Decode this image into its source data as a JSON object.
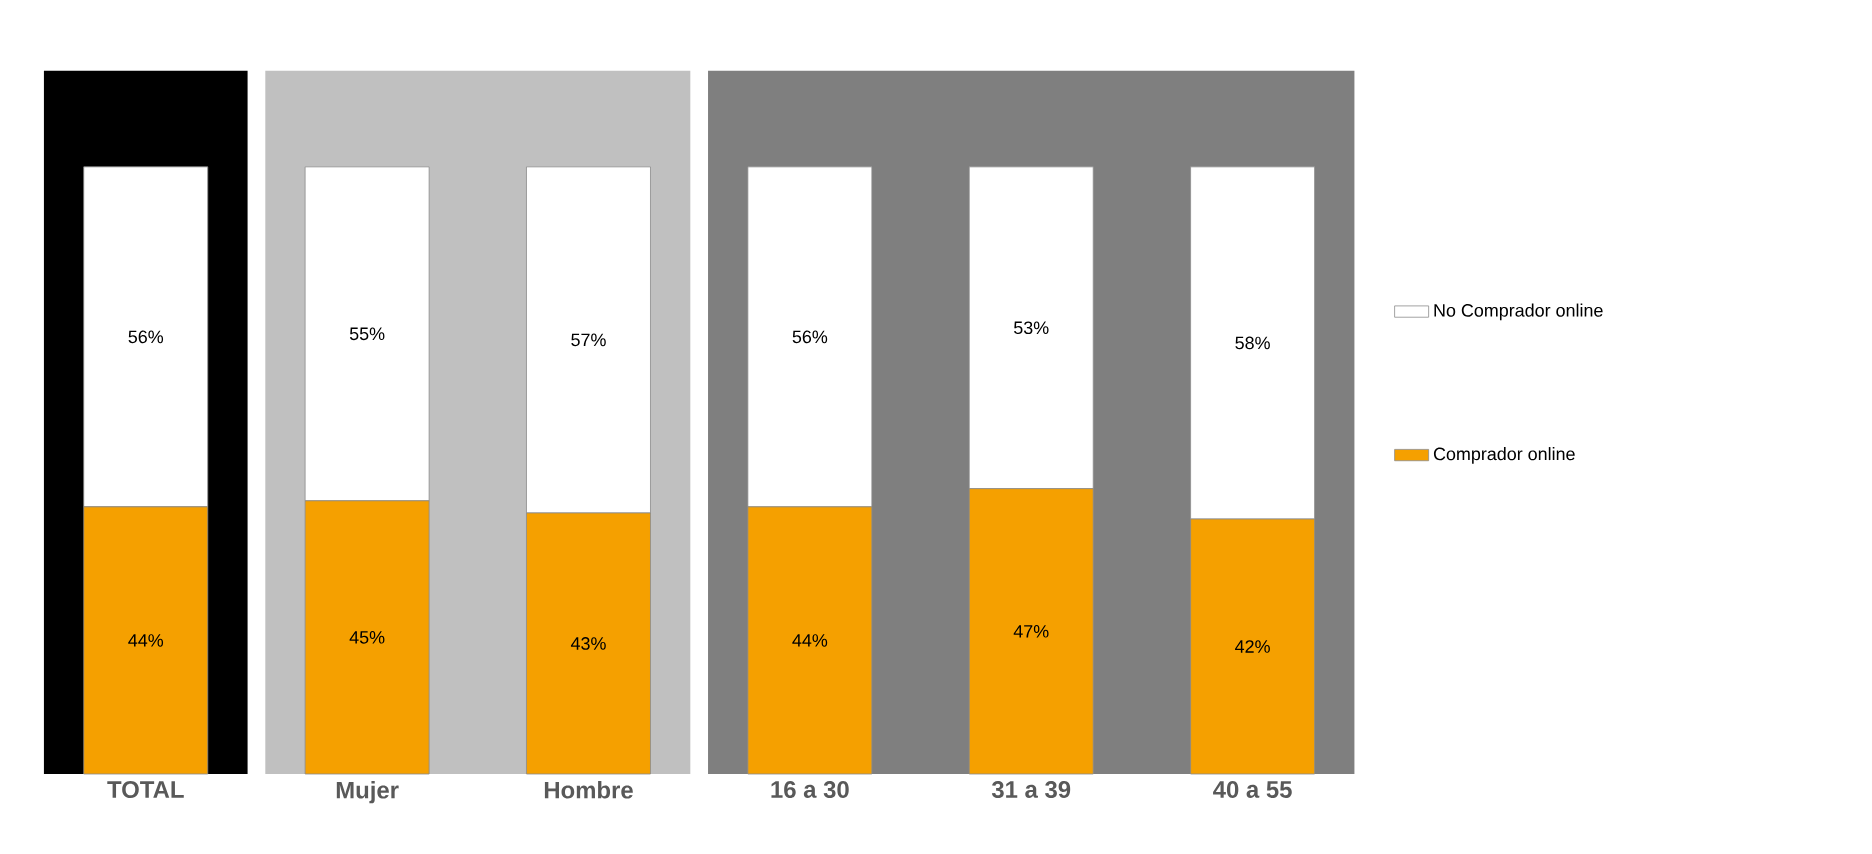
{
  "chart_data": {
    "type": "bar",
    "stacked": true,
    "categories": [
      "TOTAL",
      "Mujer",
      "Hombre",
      "16 a 30",
      "31 a 39",
      "40 a 55"
    ],
    "series": [
      {
        "name": "Comprador online",
        "color": "#f5a000",
        "values": [
          44,
          45,
          43,
          44,
          47,
          42
        ],
        "value_labels": [
          "44%",
          "45%",
          "43%",
          "44%",
          "47%",
          "42%"
        ]
      },
      {
        "name": "No Comprador online",
        "color": "#ffffff",
        "values": [
          56,
          55,
          57,
          56,
          53,
          58
        ],
        "value_labels": [
          "56%",
          "55%",
          "57%",
          "56%",
          "53%",
          "58%"
        ]
      }
    ],
    "bands": [
      {
        "axis": "x",
        "from": "TOTAL",
        "to": "TOTAL",
        "color": "#000000"
      },
      {
        "axis": "x",
        "from": "Mujer",
        "to": "Hombre",
        "color": "#c0c0c0"
      },
      {
        "axis": "x",
        "from": "16 a 30",
        "to": "40 a 55",
        "color": "#7f7f7f"
      }
    ],
    "legend": "right"
  }
}
